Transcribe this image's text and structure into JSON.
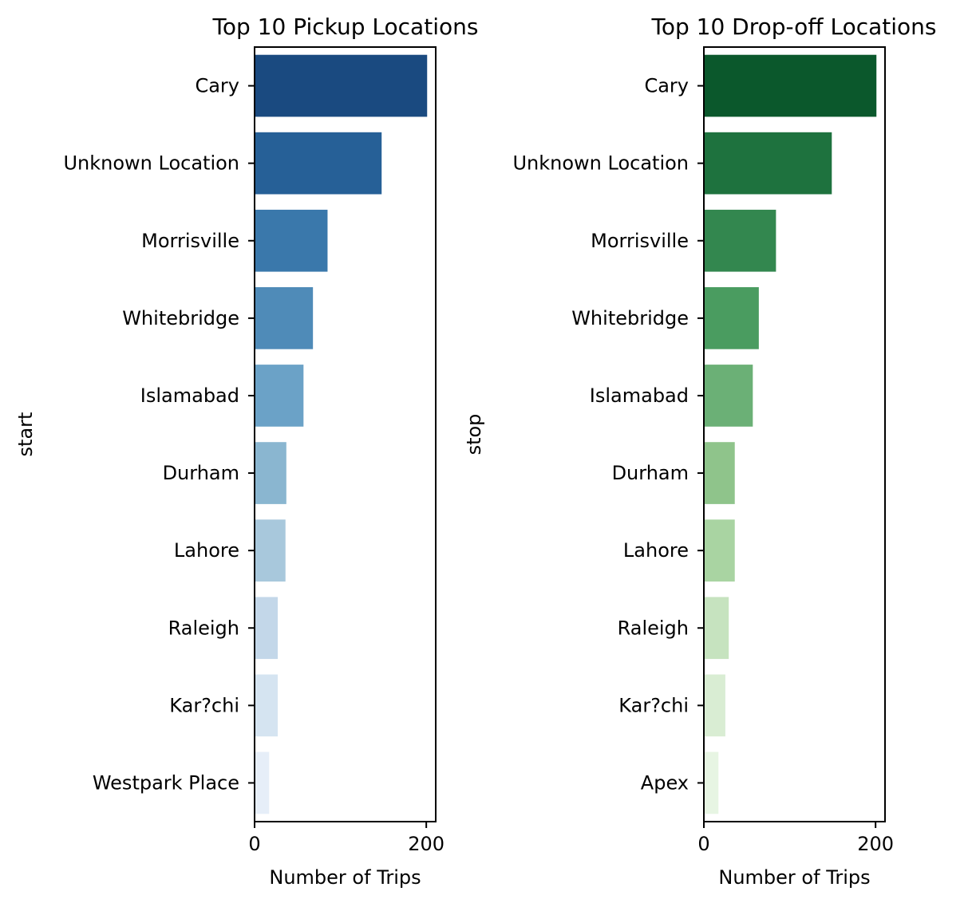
{
  "chart_data": [
    {
      "type": "bar",
      "orientation": "horizontal",
      "title": "Top 10 Pickup Locations",
      "xlabel": "Number of Trips",
      "ylabel": "start",
      "categories": [
        "Cary",
        "Unknown Location",
        "Morrisville",
        "Whitebridge",
        "Islamabad",
        "Durham",
        "Lahore",
        "Raleigh",
        "Kar?chi",
        "Westpark Place"
      ],
      "values": [
        201,
        148,
        85,
        68,
        57,
        37,
        36,
        27,
        27,
        17
      ],
      "xlim": [
        0,
        211
      ],
      "xticks": [
        0,
        200
      ],
      "grid": false,
      "colors": [
        "#1a4a80",
        "#266097",
        "#3a78ab",
        "#4f8bb8",
        "#6ba2c7",
        "#8ab6d0",
        "#a8c8dc",
        "#c3d7e9",
        "#d5e4f1",
        "#e6eef8"
      ]
    },
    {
      "type": "bar",
      "orientation": "horizontal",
      "title": "Top 10 Drop-off Locations",
      "xlabel": "Number of Trips",
      "ylabel": "stop",
      "categories": [
        "Cary",
        "Unknown Location",
        "Morrisville",
        "Whitebridge",
        "Islamabad",
        "Durham",
        "Lahore",
        "Raleigh",
        "Kar?chi",
        "Apex"
      ],
      "values": [
        201,
        149,
        84,
        64,
        57,
        36,
        36,
        29,
        25,
        17
      ],
      "xlim": [
        0,
        211
      ],
      "xticks": [
        0,
        200
      ],
      "grid": false,
      "colors": [
        "#0b582c",
        "#1e723e",
        "#33874f",
        "#4a9c60",
        "#6bb076",
        "#8fc48b",
        "#a9d4a2",
        "#c6e3bf",
        "#d9edd3",
        "#e7f5e3"
      ]
    }
  ]
}
